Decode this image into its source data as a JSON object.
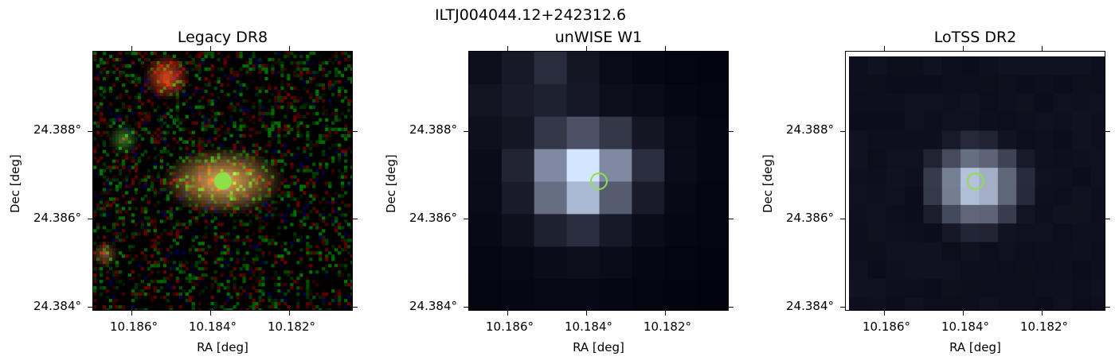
{
  "suptitle": "ILTJ004044.12+242312.6",
  "panels": [
    {
      "title": "Legacy DR8",
      "xlabel": "RA [deg]",
      "ylabel": "Dec [deg]",
      "xticks": [
        "10.186°",
        "10.184°",
        "10.182°"
      ],
      "yticks": [
        "24.388°",
        "24.386°",
        "24.384°"
      ]
    },
    {
      "title": "unWISE W1",
      "xlabel": "RA [deg]",
      "ylabel": "Dec [deg]",
      "xticks": [
        "10.186°",
        "10.184°",
        "10.182°"
      ],
      "yticks": [
        "24.388°",
        "24.386°",
        "24.384°"
      ]
    },
    {
      "title": "LoTSS DR2",
      "xlabel": "RA [deg]",
      "ylabel": "Dec [deg]",
      "xticks": [
        "10.186°",
        "10.184°",
        "10.182°"
      ],
      "yticks": [
        "24.388°",
        "24.386°",
        "24.384°"
      ]
    }
  ],
  "colors": {
    "marker": "#8ee04a"
  }
}
